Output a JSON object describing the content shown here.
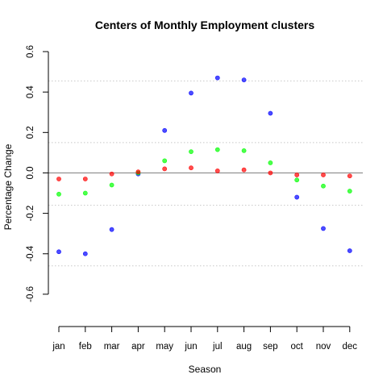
{
  "chart_data": {
    "type": "scatter",
    "title": "Centers of Monthly Employment clusters",
    "xlabel": "Season",
    "ylabel": "Percentage Change",
    "categories": [
      "jan",
      "feb",
      "mar",
      "apr",
      "may",
      "jun",
      "jul",
      "aug",
      "sep",
      "oct",
      "nov",
      "dec"
    ],
    "ylim": [
      -0.72,
      0.62
    ],
    "yticks": [
      -0.6,
      -0.4,
      -0.2,
      0.0,
      0.2,
      0.4,
      0.6
    ],
    "ytick_labels": [
      "-0.6",
      "-0.4",
      "-0.2",
      "0.0",
      "0.2",
      "0.4",
      "0.6"
    ],
    "reference_lines": {
      "zero": {
        "y": 0.0,
        "color": "#808080",
        "style": "solid"
      },
      "dotted": {
        "y": [
          -0.46,
          -0.16,
          0.15,
          0.455
        ],
        "color": "#c8c8c8",
        "style": "dotted"
      }
    },
    "grid": false,
    "legend": "none",
    "series": [
      {
        "color": "#0000ff",
        "values": [
          -0.39,
          -0.4,
          -0.28,
          -0.005,
          0.21,
          0.395,
          0.47,
          0.46,
          0.295,
          -0.12,
          -0.275,
          -0.385
        ]
      },
      {
        "color": "#00ff00",
        "values": [
          -0.105,
          -0.1,
          -0.06,
          0.0,
          0.06,
          0.105,
          0.115,
          0.11,
          0.05,
          -0.035,
          -0.065,
          -0.09
        ]
      },
      {
        "color": "#ff0000",
        "values": [
          -0.03,
          -0.03,
          -0.005,
          0.005,
          0.02,
          0.025,
          0.01,
          0.015,
          0.0,
          -0.01,
          -0.01,
          -0.015
        ]
      }
    ]
  }
}
